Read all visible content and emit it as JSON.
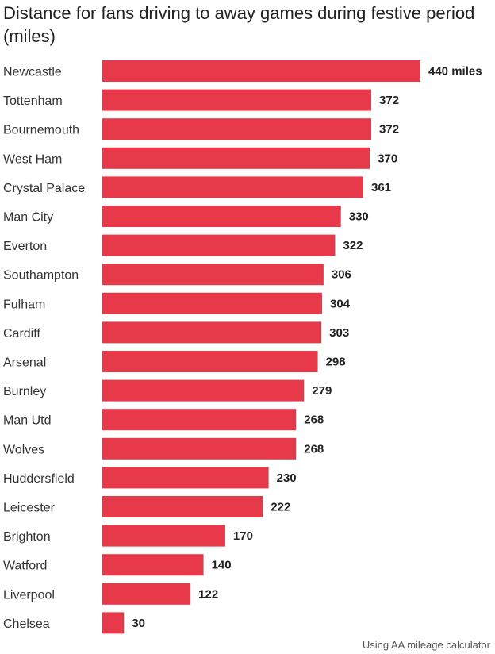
{
  "chart_data": {
    "type": "bar",
    "orientation": "horizontal",
    "title": "Distance for fans driving to away games during festive period (miles)",
    "categories": [
      "Newcastle",
      "Tottenham",
      "Bournemouth",
      "West Ham",
      "Crystal Palace",
      "Man City",
      "Everton",
      "Southampton",
      "Fulham",
      "Cardiff",
      "Arsenal",
      "Burnley",
      "Man Utd",
      "Wolves",
      "Huddersfield",
      "Leicester",
      "Brighton",
      "Watford",
      "Liverpool",
      "Chelsea"
    ],
    "values": [
      440,
      372,
      372,
      370,
      361,
      330,
      322,
      306,
      304,
      303,
      298,
      279,
      268,
      268,
      230,
      222,
      170,
      140,
      122,
      30
    ],
    "value_labels": [
      "440 miles",
      "372",
      "372",
      "370",
      "361",
      "330",
      "322",
      "306",
      "304",
      "303",
      "298",
      "279",
      "268",
      "268",
      "230",
      "222",
      "170",
      "140",
      "122",
      "30"
    ],
    "bar_color": "#e8394a",
    "xlim": [
      0,
      440
    ],
    "grid": false,
    "source": "Using AA mileage calculator"
  }
}
